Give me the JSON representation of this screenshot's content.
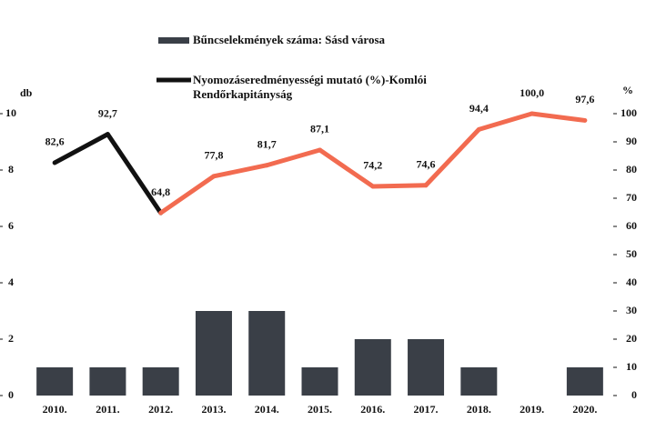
{
  "chart_data": {
    "type": "bar_line",
    "y_label": "db",
    "y2_label": "%",
    "categories": [
      "2010.",
      "2011.",
      "2012.",
      "2013.",
      "2014.",
      "2015.",
      "2016.",
      "2017.",
      "2018.",
      "2019.",
      "2020."
    ],
    "series": [
      {
        "name": "Bűncselekmények száma: Sásd városa",
        "color": "#3a3f47",
        "type": "bar",
        "values": [
          1,
          1,
          1,
          3,
          3,
          1,
          2,
          2,
          1,
          0,
          1
        ]
      },
      {
        "name": "Nyomozáseredményességi mutató (%)-Komlói Rendőrkapitányság",
        "color": "#f26b50",
        "type": "line",
        "axis": "y2",
        "segment_colors": [
          "#111111",
          "#111111",
          "#f26b50",
          "#f26b50",
          "#f26b50",
          "#f26b50",
          "#f26b50",
          "#f26b50",
          "#f26b50",
          "#f26b50"
        ],
        "legend_color": "#111111",
        "values": [
          82.6,
          92.7,
          64.8,
          77.8,
          81.7,
          87.1,
          74.2,
          74.6,
          94.4,
          100.0,
          97.6
        ],
        "value_labels": [
          "82,6",
          "92,7",
          "64,8",
          "77,8",
          "81,7",
          "87,1",
          "74,2",
          "74,6",
          "94,4",
          "100,0",
          "97,6"
        ]
      }
    ],
    "ylim": [
      0,
      10
    ],
    "yticks": [
      0,
      2,
      4,
      6,
      8,
      10
    ],
    "y2lim": [
      0,
      100
    ],
    "y2ticks": [
      0,
      10,
      20,
      30,
      40,
      50,
      60,
      70,
      80,
      90,
      100
    ]
  }
}
